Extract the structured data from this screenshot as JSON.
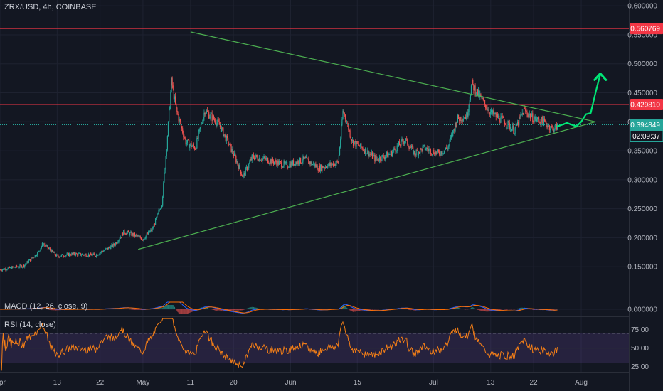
{
  "chart_title": "ZRX/USD, 4h, COINBASE",
  "countdown": "02:09:37",
  "colors": {
    "background": "#131722",
    "grid": "#1e2230",
    "up": "#26a69a",
    "down": "#ef5350",
    "trendline": "#4caf50",
    "hline": "#f23645",
    "projection": "#00e676",
    "last_price": "#26a69a",
    "macd": "#2962ff",
    "signal": "#ff6d00",
    "rsi": "#f57f17",
    "rsi_band": "#7e57c2"
  },
  "chart_data": [
    {
      "type": "candlestick",
      "title": "ZRX/USD, 4h, COINBASE",
      "ylim": [
        0.1,
        0.61
      ],
      "y_ticks": [
        "0.600000",
        "0.550000",
        "0.500000",
        "0.450000",
        "0.400000",
        "0.350000",
        "0.300000",
        "0.250000",
        "0.200000",
        "0.150000"
      ],
      "x_ticks": [
        "Apr",
        "13",
        "22",
        "May",
        "11",
        "20",
        "Jun",
        "15",
        "Jul",
        "13",
        "22",
        "Aug"
      ],
      "x_tick_days": [
        0,
        12,
        21,
        30,
        40,
        49,
        61,
        75,
        91,
        103,
        112,
        122
      ],
      "xlim_days": [
        0,
        132
      ],
      "price_path": [
        [
          0,
          0.145
        ],
        [
          5,
          0.152
        ],
        [
          8,
          0.175
        ],
        [
          9,
          0.19
        ],
        [
          12,
          0.168
        ],
        [
          15,
          0.172
        ],
        [
          20,
          0.17
        ],
        [
          24,
          0.188
        ],
        [
          26,
          0.21
        ],
        [
          28,
          0.205
        ],
        [
          30,
          0.198
        ],
        [
          32,
          0.215
        ],
        [
          34,
          0.26
        ],
        [
          35,
          0.36
        ],
        [
          36,
          0.47
        ],
        [
          37,
          0.42
        ],
        [
          39,
          0.365
        ],
        [
          41,
          0.355
        ],
        [
          43,
          0.42
        ],
        [
          46,
          0.395
        ],
        [
          49,
          0.345
        ],
        [
          51,
          0.305
        ],
        [
          53,
          0.34
        ],
        [
          56,
          0.335
        ],
        [
          60,
          0.325
        ],
        [
          64,
          0.335
        ],
        [
          67,
          0.32
        ],
        [
          71,
          0.33
        ],
        [
          72,
          0.42
        ],
        [
          74,
          0.365
        ],
        [
          76,
          0.355
        ],
        [
          79,
          0.335
        ],
        [
          82,
          0.345
        ],
        [
          85,
          0.37
        ],
        [
          87,
          0.345
        ],
        [
          89,
          0.355
        ],
        [
          92,
          0.345
        ],
        [
          94,
          0.355
        ],
        [
          96,
          0.405
        ],
        [
          98,
          0.41
        ],
        [
          99,
          0.465
        ],
        [
          101,
          0.44
        ],
        [
          103,
          0.415
        ],
        [
          106,
          0.4
        ],
        [
          108,
          0.385
        ],
        [
          110,
          0.42
        ],
        [
          112,
          0.405
        ],
        [
          114,
          0.4
        ],
        [
          116,
          0.388
        ],
        [
          117,
          0.392
        ]
      ],
      "drawings": {
        "upper_trendline": [
          [
            40,
            0.555
          ],
          [
            125,
            0.4
          ]
        ],
        "lower_trendline": [
          [
            29,
            0.18
          ],
          [
            125,
            0.4
          ]
        ],
        "horizontal_lines": [
          0.560769,
          0.42981
        ],
        "projection_path": [
          [
            117,
            0.392
          ],
          [
            119,
            0.398
          ],
          [
            121,
            0.392
          ],
          [
            122,
            0.4
          ],
          [
            123,
            0.413
          ],
          [
            124,
            0.415
          ],
          [
            125,
            0.45
          ],
          [
            126,
            0.482
          ]
        ]
      },
      "price_tags": [
        {
          "label": "0.560769",
          "value": 0.560769,
          "color": "#f23645"
        },
        {
          "label": "0.429810",
          "value": 0.42981,
          "color": "#f23645"
        },
        {
          "label": "0.394849",
          "value": 0.394849,
          "color": "#26a69a"
        }
      ],
      "last_price": 0.394849
    },
    {
      "type": "line",
      "title": "MACD (12, 26, close, 9)",
      "y_ticks": [
        "0.000000"
      ],
      "series": [
        {
          "name": "MACD",
          "values": [
            0,
            0.001,
            0.003,
            0.002,
            0,
            -0.001,
            0,
            0.001,
            0.0005
          ]
        },
        {
          "name": "Signal",
          "values": [
            0,
            0.0008,
            0.002,
            0.002,
            0.0005,
            -0.0005,
            0,
            0.0008,
            0.0004
          ]
        }
      ]
    },
    {
      "type": "line",
      "title": "RSI (14, close)",
      "ylim": [
        18,
        92
      ],
      "y_ticks": [
        "75.00",
        "50.00",
        "25.00"
      ],
      "bands": [
        30,
        70
      ]
    }
  ]
}
